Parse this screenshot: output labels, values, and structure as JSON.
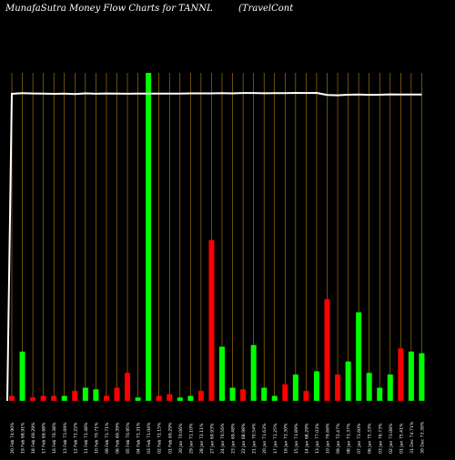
{
  "chart_data": {
    "type": "bar",
    "title": "MunafaSutra  Money Flow  Charts for TANNL",
    "subtitle": "(TravelCont",
    "xlabel": "",
    "ylabel": "",
    "grid": true,
    "colors": {
      "background": "#000000",
      "up": "#00ff00",
      "down": "#ff0000",
      "grid": "#b8860b",
      "line": "#ffffff",
      "text": "#ffffff"
    },
    "categories": [
      "20 Feb 74.90%",
      "19 Feb 68.91%",
      "18 Feb 69.29%",
      "17 Feb 69.68%",
      "16 Feb 70.38%",
      "13 Feb 73.69%",
      "12 Feb 71.22%",
      "11 Feb 71.48%",
      "10 Feb 70.71%",
      "09 Feb 71.71%",
      "06 Feb 69.39%",
      "05 Feb 70.95%",
      "04 Feb 71.31%",
      "03 Feb 71.04%",
      "02 Feb 72.15%",
      "01 Feb 69.29%",
      "30 Jan 70.06%",
      "29 Jan 71.10%",
      "28 Jan 72.11%",
      "27 Jan 69.93%",
      "24 Jan 70.56%",
      "23 Jan 69.48%",
      "22 Jan 68.98%",
      "21 Jan 70.54%",
      "20 Jan 71.63%",
      "17 Jan 71.25%",
      "16 Jan 73.30%",
      "15 Jan 71.89%",
      "14 Jan 68.29%",
      "13 Jan 77.03%",
      "10 Jan 76.66%",
      "09 Jan 72.47%",
      "08 Jan 73.37%",
      "07 Jan 73.60%",
      "06 Jan 75.33%",
      "03 Jan 76.73%",
      "02 Jan 73.08%",
      "01 Jan 75.41%",
      "31 Dec 74.71%",
      "30 Dec 73.30%"
    ],
    "directions": [
      "down",
      "up",
      "down",
      "down",
      "down",
      "up",
      "down",
      "up",
      "up",
      "down",
      "down",
      "down",
      "up",
      "up",
      "down",
      "down",
      "up",
      "up",
      "down",
      "down",
      "up",
      "up",
      "down",
      "up",
      "up",
      "up",
      "down",
      "up",
      "down",
      "up",
      "down",
      "down",
      "up",
      "up",
      "up",
      "up",
      "up",
      "down",
      "up",
      "up"
    ],
    "values": [
      3,
      30,
      2,
      3,
      3,
      3,
      6,
      8,
      7,
      3,
      8,
      17,
      2,
      200,
      3,
      4,
      2,
      3,
      6,
      98,
      33,
      8,
      7,
      34,
      8,
      3,
      10,
      16,
      6,
      18,
      62,
      16,
      24,
      54,
      17,
      8,
      16,
      32,
      30,
      29
    ],
    "line": [
      77.6,
      78.2,
      77.9,
      77.8,
      77.6,
      77.8,
      77.4,
      78.0,
      77.7,
      77.9,
      77.8,
      77.7,
      77.8,
      77.8,
      77.8,
      77.8,
      77.8,
      78.0,
      78.0,
      78.0,
      78.2,
      78.0,
      78.3,
      78.3,
      78.1,
      78.2,
      78.2,
      78.4,
      78.3,
      78.4,
      76.6,
      76.3,
      76.8,
      77.0,
      76.7,
      76.8,
      77.1,
      77.0,
      77.0,
      77.0
    ]
  }
}
